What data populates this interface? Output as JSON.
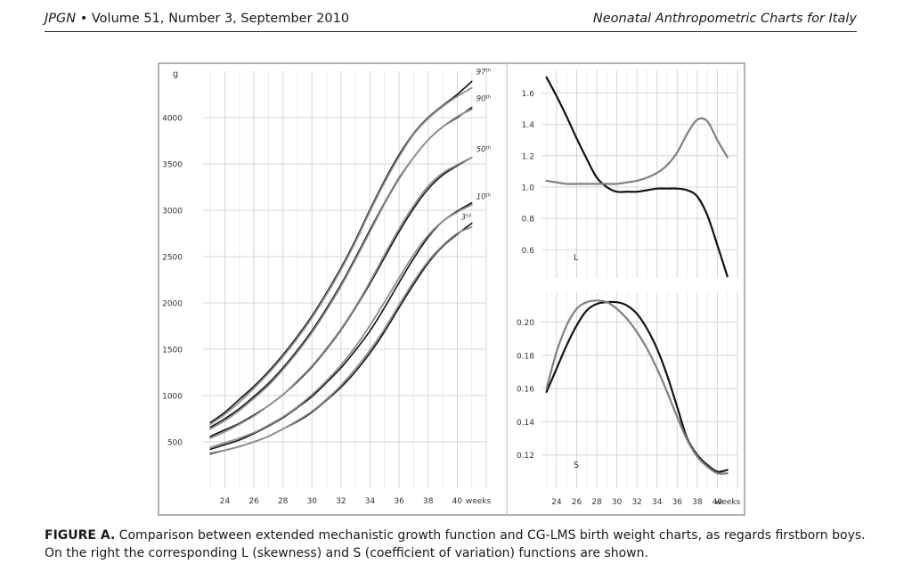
{
  "header": {
    "journal": "JPGN",
    "issue": " • Volume 51, Number 3, September 2010",
    "running_title": "Neonatal Anthropometric Charts for Italy"
  },
  "caption": {
    "label": "FIGURE A.",
    "text": " Comparison between extended mechanistic growth function and CG-LMS birth weight charts, as regards firstborn boys. On the right the corresponding L (skewness) and S (coefficient of variation) functions are shown."
  },
  "chart_data": [
    {
      "id": "weight",
      "type": "line",
      "title": "",
      "xlabel": "weeks",
      "ylabel": "g",
      "xlim": [
        22.5,
        42
      ],
      "ylim": [
        0,
        4500
      ],
      "x_ticks": [
        "24",
        "26",
        "28",
        "30",
        "32",
        "34",
        "36",
        "38",
        "40",
        "weeks"
      ],
      "y_ticks": [
        "500",
        "1000",
        "1500",
        "2000",
        "2500",
        "3000",
        "3500",
        "4000"
      ],
      "grid": true,
      "x": [
        23,
        24,
        25,
        26,
        27,
        28,
        29,
        30,
        31,
        32,
        33,
        34,
        35,
        36,
        37,
        38,
        39,
        40,
        41
      ],
      "percentile_labels": [
        {
          "base": "97",
          "sup": "th"
        },
        {
          "base": "90",
          "sup": "th"
        },
        {
          "base": "50",
          "sup": "th"
        },
        {
          "base": "10",
          "sup": "th"
        },
        {
          "base": "3",
          "sup": "rd"
        }
      ],
      "series": [
        {
          "color": "#111111",
          "values": [
            710,
            820,
            960,
            1100,
            1260,
            1440,
            1640,
            1860,
            2110,
            2380,
            2680,
            3010,
            3320,
            3600,
            3830,
            4000,
            4130,
            4250,
            4390
          ]
        },
        {
          "color": "#8c8c8c",
          "values": [
            690,
            800,
            930,
            1080,
            1240,
            1420,
            1620,
            1840,
            2090,
            2360,
            2660,
            2990,
            3300,
            3580,
            3820,
            3990,
            4120,
            4230,
            4320
          ]
        },
        {
          "color": "#111111",
          "values": [
            660,
            750,
            860,
            990,
            1130,
            1300,
            1490,
            1700,
            1940,
            2200,
            2490,
            2790,
            3080,
            3350,
            3570,
            3760,
            3900,
            4000,
            4110
          ]
        },
        {
          "color": "#8c8c8c",
          "values": [
            640,
            730,
            840,
            970,
            1110,
            1280,
            1470,
            1680,
            1920,
            2180,
            2470,
            2770,
            3070,
            3340,
            3570,
            3760,
            3900,
            4010,
            4090
          ]
        },
        {
          "color": "#111111",
          "values": [
            560,
            630,
            700,
            790,
            890,
            1010,
            1150,
            1310,
            1500,
            1710,
            1950,
            2210,
            2490,
            2770,
            3020,
            3230,
            3380,
            3480,
            3570
          ]
        },
        {
          "color": "#8c8c8c",
          "values": [
            540,
            610,
            690,
            780,
            890,
            1010,
            1160,
            1320,
            1510,
            1720,
            1960,
            2230,
            2520,
            2800,
            3050,
            3260,
            3400,
            3490,
            3570
          ]
        },
        {
          "color": "#111111",
          "values": [
            420,
            470,
            520,
            590,
            670,
            760,
            870,
            990,
            1140,
            1300,
            1490,
            1700,
            1950,
            2220,
            2480,
            2710,
            2880,
            2990,
            3080
          ]
        },
        {
          "color": "#8c8c8c",
          "values": [
            440,
            490,
            540,
            600,
            680,
            770,
            880,
            1010,
            1160,
            1330,
            1530,
            1760,
            2010,
            2270,
            2520,
            2730,
            2880,
            2980,
            3060
          ]
        },
        {
          "color": "#111111",
          "values": [
            370,
            410,
            450,
            500,
            560,
            640,
            720,
            820,
            950,
            1090,
            1260,
            1460,
            1690,
            1950,
            2200,
            2430,
            2610,
            2740,
            2860
          ]
        },
        {
          "color": "#8c8c8c",
          "values": [
            380,
            410,
            450,
            500,
            560,
            640,
            730,
            830,
            960,
            1110,
            1290,
            1490,
            1720,
            1980,
            2230,
            2450,
            2620,
            2750,
            2820
          ]
        }
      ]
    },
    {
      "id": "L",
      "type": "line",
      "title": "",
      "panel_label": "L",
      "xlim": [
        22.5,
        42
      ],
      "ylim": [
        0.42,
        1.75
      ],
      "y_ticks": [
        "0.6",
        "0.8",
        "1.0",
        "1.2",
        "1.4",
        "1.6"
      ],
      "grid": true,
      "x": [
        23,
        24,
        25,
        26,
        27,
        28,
        29,
        30,
        31,
        32,
        33,
        34,
        35,
        36,
        37,
        38,
        39,
        40,
        41
      ],
      "series": [
        {
          "color": "#111111",
          "values": [
            1.7,
            1.58,
            1.45,
            1.31,
            1.18,
            1.06,
            1.0,
            0.97,
            0.97,
            0.97,
            0.98,
            0.99,
            0.99,
            0.99,
            0.98,
            0.94,
            0.82,
            0.63,
            0.43
          ]
        },
        {
          "color": "#808080",
          "values": [
            1.04,
            1.03,
            1.02,
            1.02,
            1.02,
            1.02,
            1.02,
            1.02,
            1.03,
            1.04,
            1.06,
            1.09,
            1.14,
            1.22,
            1.34,
            1.43,
            1.42,
            1.3,
            1.19
          ]
        }
      ]
    },
    {
      "id": "S",
      "type": "line",
      "title": "",
      "panel_label": "S",
      "xlabel": "weeks",
      "xlim": [
        22.5,
        42
      ],
      "ylim": [
        0.1,
        0.218
      ],
      "x_ticks": [
        "24",
        "26",
        "28",
        "30",
        "32",
        "34",
        "36",
        "38",
        "40",
        "weeks"
      ],
      "y_ticks": [
        "0.12",
        "0.14",
        "0.16",
        "0.18",
        "0.20"
      ],
      "grid": true,
      "x": [
        23,
        24,
        25,
        26,
        27,
        28,
        29,
        30,
        31,
        32,
        33,
        34,
        35,
        36,
        37,
        38,
        39,
        40,
        41
      ],
      "series": [
        {
          "color": "#111111",
          "values": [
            0.158,
            0.172,
            0.186,
            0.198,
            0.207,
            0.211,
            0.212,
            0.212,
            0.21,
            0.205,
            0.196,
            0.184,
            0.168,
            0.149,
            0.13,
            0.12,
            0.114,
            0.11,
            0.111
          ]
        },
        {
          "color": "#808080",
          "values": [
            0.16,
            0.182,
            0.198,
            0.208,
            0.212,
            0.213,
            0.212,
            0.208,
            0.202,
            0.194,
            0.184,
            0.172,
            0.158,
            0.143,
            0.129,
            0.119,
            0.113,
            0.109,
            0.109
          ]
        }
      ]
    }
  ]
}
